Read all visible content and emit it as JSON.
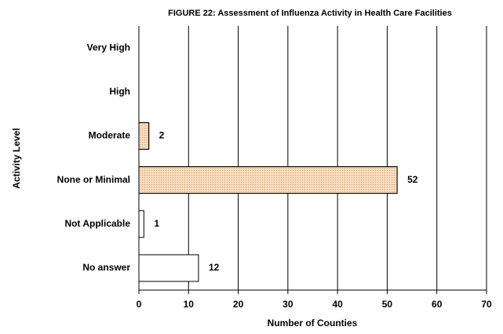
{
  "chart_data": {
    "type": "hbar",
    "title": "FIGURE 22: Assessment of Influenza Activity in Health Care Facilities",
    "x_label": "Number of Counties",
    "y_label": "Activity Level",
    "categories": [
      "Very High",
      "High",
      "Moderate",
      "None or Minimal",
      "Not Applicable",
      "No answer"
    ],
    "values": [
      0,
      0,
      2,
      52,
      1,
      12
    ],
    "colors": [
      "#ffffff",
      "#ffffff",
      "#f9dcbd",
      "#f9dcbd",
      "#ffffff",
      "#ffffff"
    ],
    "xlim": [
      0,
      70
    ],
    "xticks": [
      0,
      10,
      20,
      30,
      40,
      50,
      60,
      70
    ],
    "grid": true
  }
}
